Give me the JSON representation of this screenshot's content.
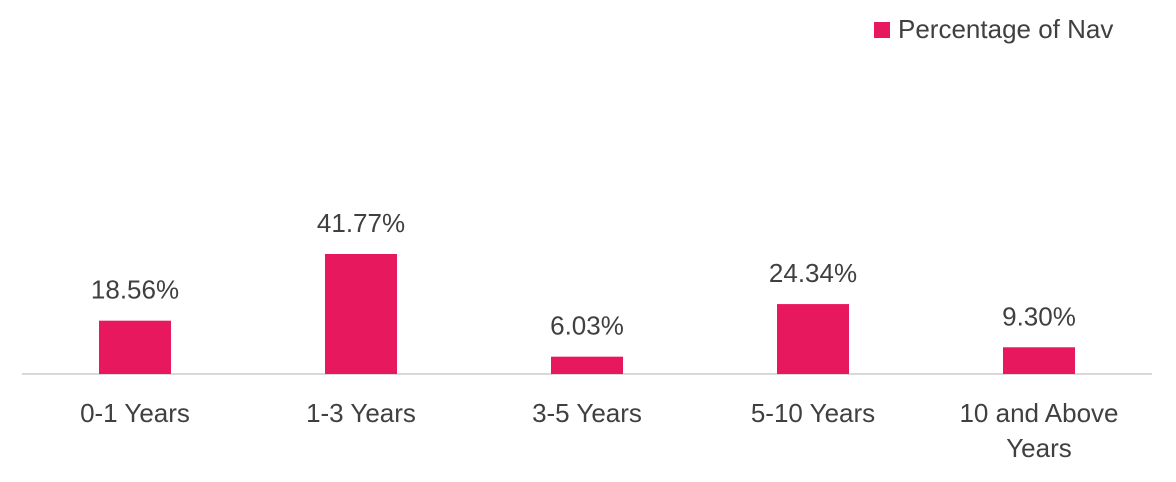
{
  "chart_data": {
    "type": "bar",
    "categories": [
      "0-1 Years",
      "1-3 Years",
      "3-5 Years",
      "5-10 Years",
      "10 and Above Years"
    ],
    "category_lines": [
      [
        "0-1 Years"
      ],
      [
        "1-3 Years"
      ],
      [
        "3-5 Years"
      ],
      [
        "5-10 Years"
      ],
      [
        "10 and Above",
        "Years"
      ]
    ],
    "series": [
      {
        "name": "Percentage of Nav",
        "values": [
          18.56,
          41.77,
          6.03,
          24.34,
          9.3
        ],
        "color": "#e8185f"
      }
    ],
    "data_labels": [
      "18.56%",
      "41.77%",
      "6.03%",
      "24.34%",
      "9.30%"
    ],
    "legend_position": "top-right",
    "grid": false
  }
}
